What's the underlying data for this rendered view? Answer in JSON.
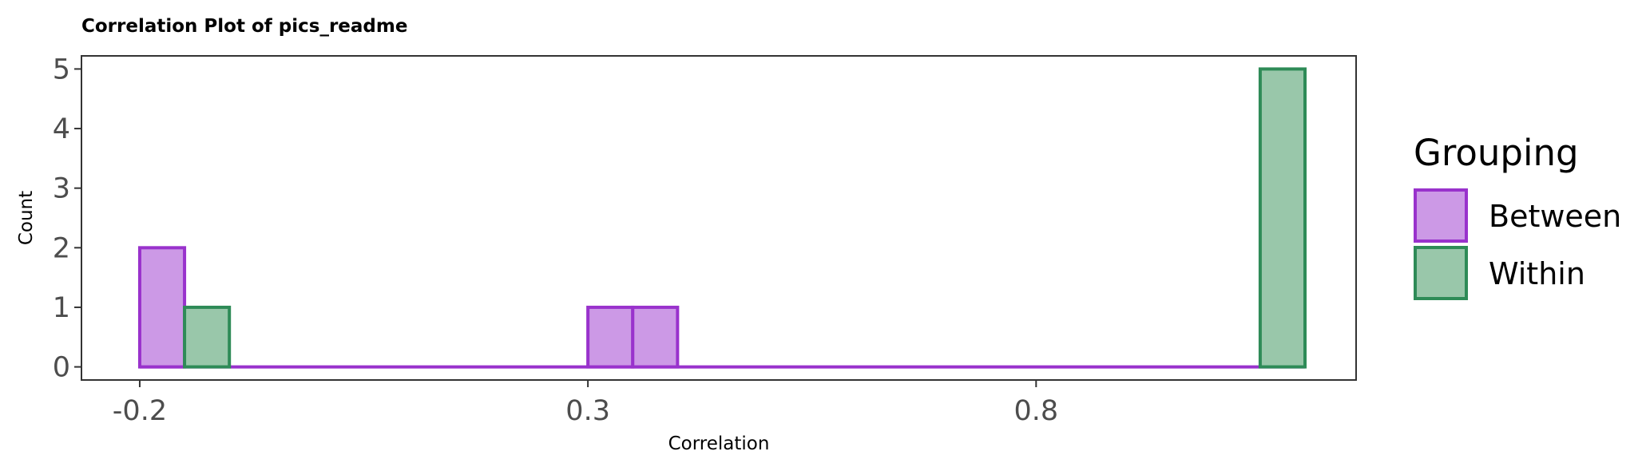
{
  "chart_data": {
    "type": "histogram",
    "title": "Correlation Plot of pics_readme",
    "xlabel": "Correlation",
    "ylabel": "Count",
    "xlim": [
      -0.265,
      1.157
    ],
    "ylim": [
      -0.22,
      5.22
    ],
    "x_ticks": [
      -0.2,
      0.3,
      0.8
    ],
    "x_tick_labels": [
      "-0.2",
      "0.3",
      "0.8"
    ],
    "y_ticks": [
      0,
      1,
      2,
      3,
      4,
      5
    ],
    "y_tick_labels": [
      "0",
      "1",
      "2",
      "3",
      "4",
      "5"
    ],
    "bin_width": 0.05,
    "grid": false,
    "legend": {
      "title": "Grouping",
      "position": "right",
      "entries": [
        {
          "label": "Between",
          "fill": "#cc99e6",
          "stroke": "#9932cc"
        },
        {
          "label": "Within",
          "fill": "#99c7aa",
          "stroke": "#2e8b57"
        }
      ]
    },
    "baseline": {
      "from": -0.2,
      "to": 1.1,
      "color": "#9932cc"
    },
    "series": [
      {
        "name": "Between",
        "fill": "#cc99e6",
        "stroke": "#9932cc",
        "bins": [
          {
            "x0": -0.2,
            "x1": -0.15,
            "count": 2
          },
          {
            "x0": 0.3,
            "x1": 0.35,
            "count": 1
          },
          {
            "x0": 0.35,
            "x1": 0.4,
            "count": 1
          }
        ]
      },
      {
        "name": "Within",
        "fill": "#99c7aa",
        "stroke": "#2e8b57",
        "bins": [
          {
            "x0": -0.15,
            "x1": -0.1,
            "count": 1
          },
          {
            "x0": 1.05,
            "x1": 1.1,
            "count": 5
          }
        ]
      }
    ]
  }
}
